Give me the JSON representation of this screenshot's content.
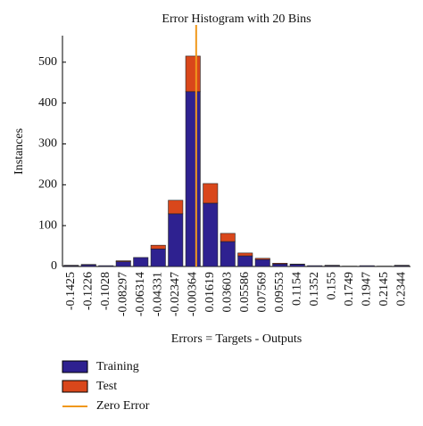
{
  "chart_data": {
    "type": "stacked_bar",
    "title": "Error Histogram with 20 Bins",
    "x_label": "Errors = Targets - Outputs",
    "y_label": "Instances",
    "categories": [
      "-0.1425",
      "-0.1226",
      "-0.1028",
      "-0.08297",
      "-0.06314",
      "-0.04331",
      "-0.02347",
      "-0.00364",
      "0.01619",
      "0.03603",
      "0.05586",
      "0.07569",
      "0.09553",
      "0.1154",
      "0.1352",
      "0.155",
      "0.1749",
      "0.1947",
      "0.2145",
      "0.2344"
    ],
    "series": [
      {
        "name": "Training",
        "color": "#2e2190",
        "values": [
          2,
          4,
          2,
          12,
          22,
          43,
          129,
          428,
          155,
          61,
          26,
          17,
          6,
          5,
          2,
          2,
          1,
          2,
          1,
          2
        ]
      },
      {
        "name": "Test",
        "color": "#d9471b",
        "values": [
          1,
          1,
          0,
          2,
          0,
          9,
          33,
          87,
          48,
          20,
          7,
          3,
          2,
          1,
          0,
          1,
          0,
          0,
          0,
          1
        ]
      }
    ],
    "zero_error": {
      "name": "Zero Error",
      "color": "#f0981c",
      "x": 0
    },
    "ylim": [
      0,
      565
    ],
    "yticks": [
      0,
      100,
      200,
      300,
      400,
      500
    ]
  }
}
